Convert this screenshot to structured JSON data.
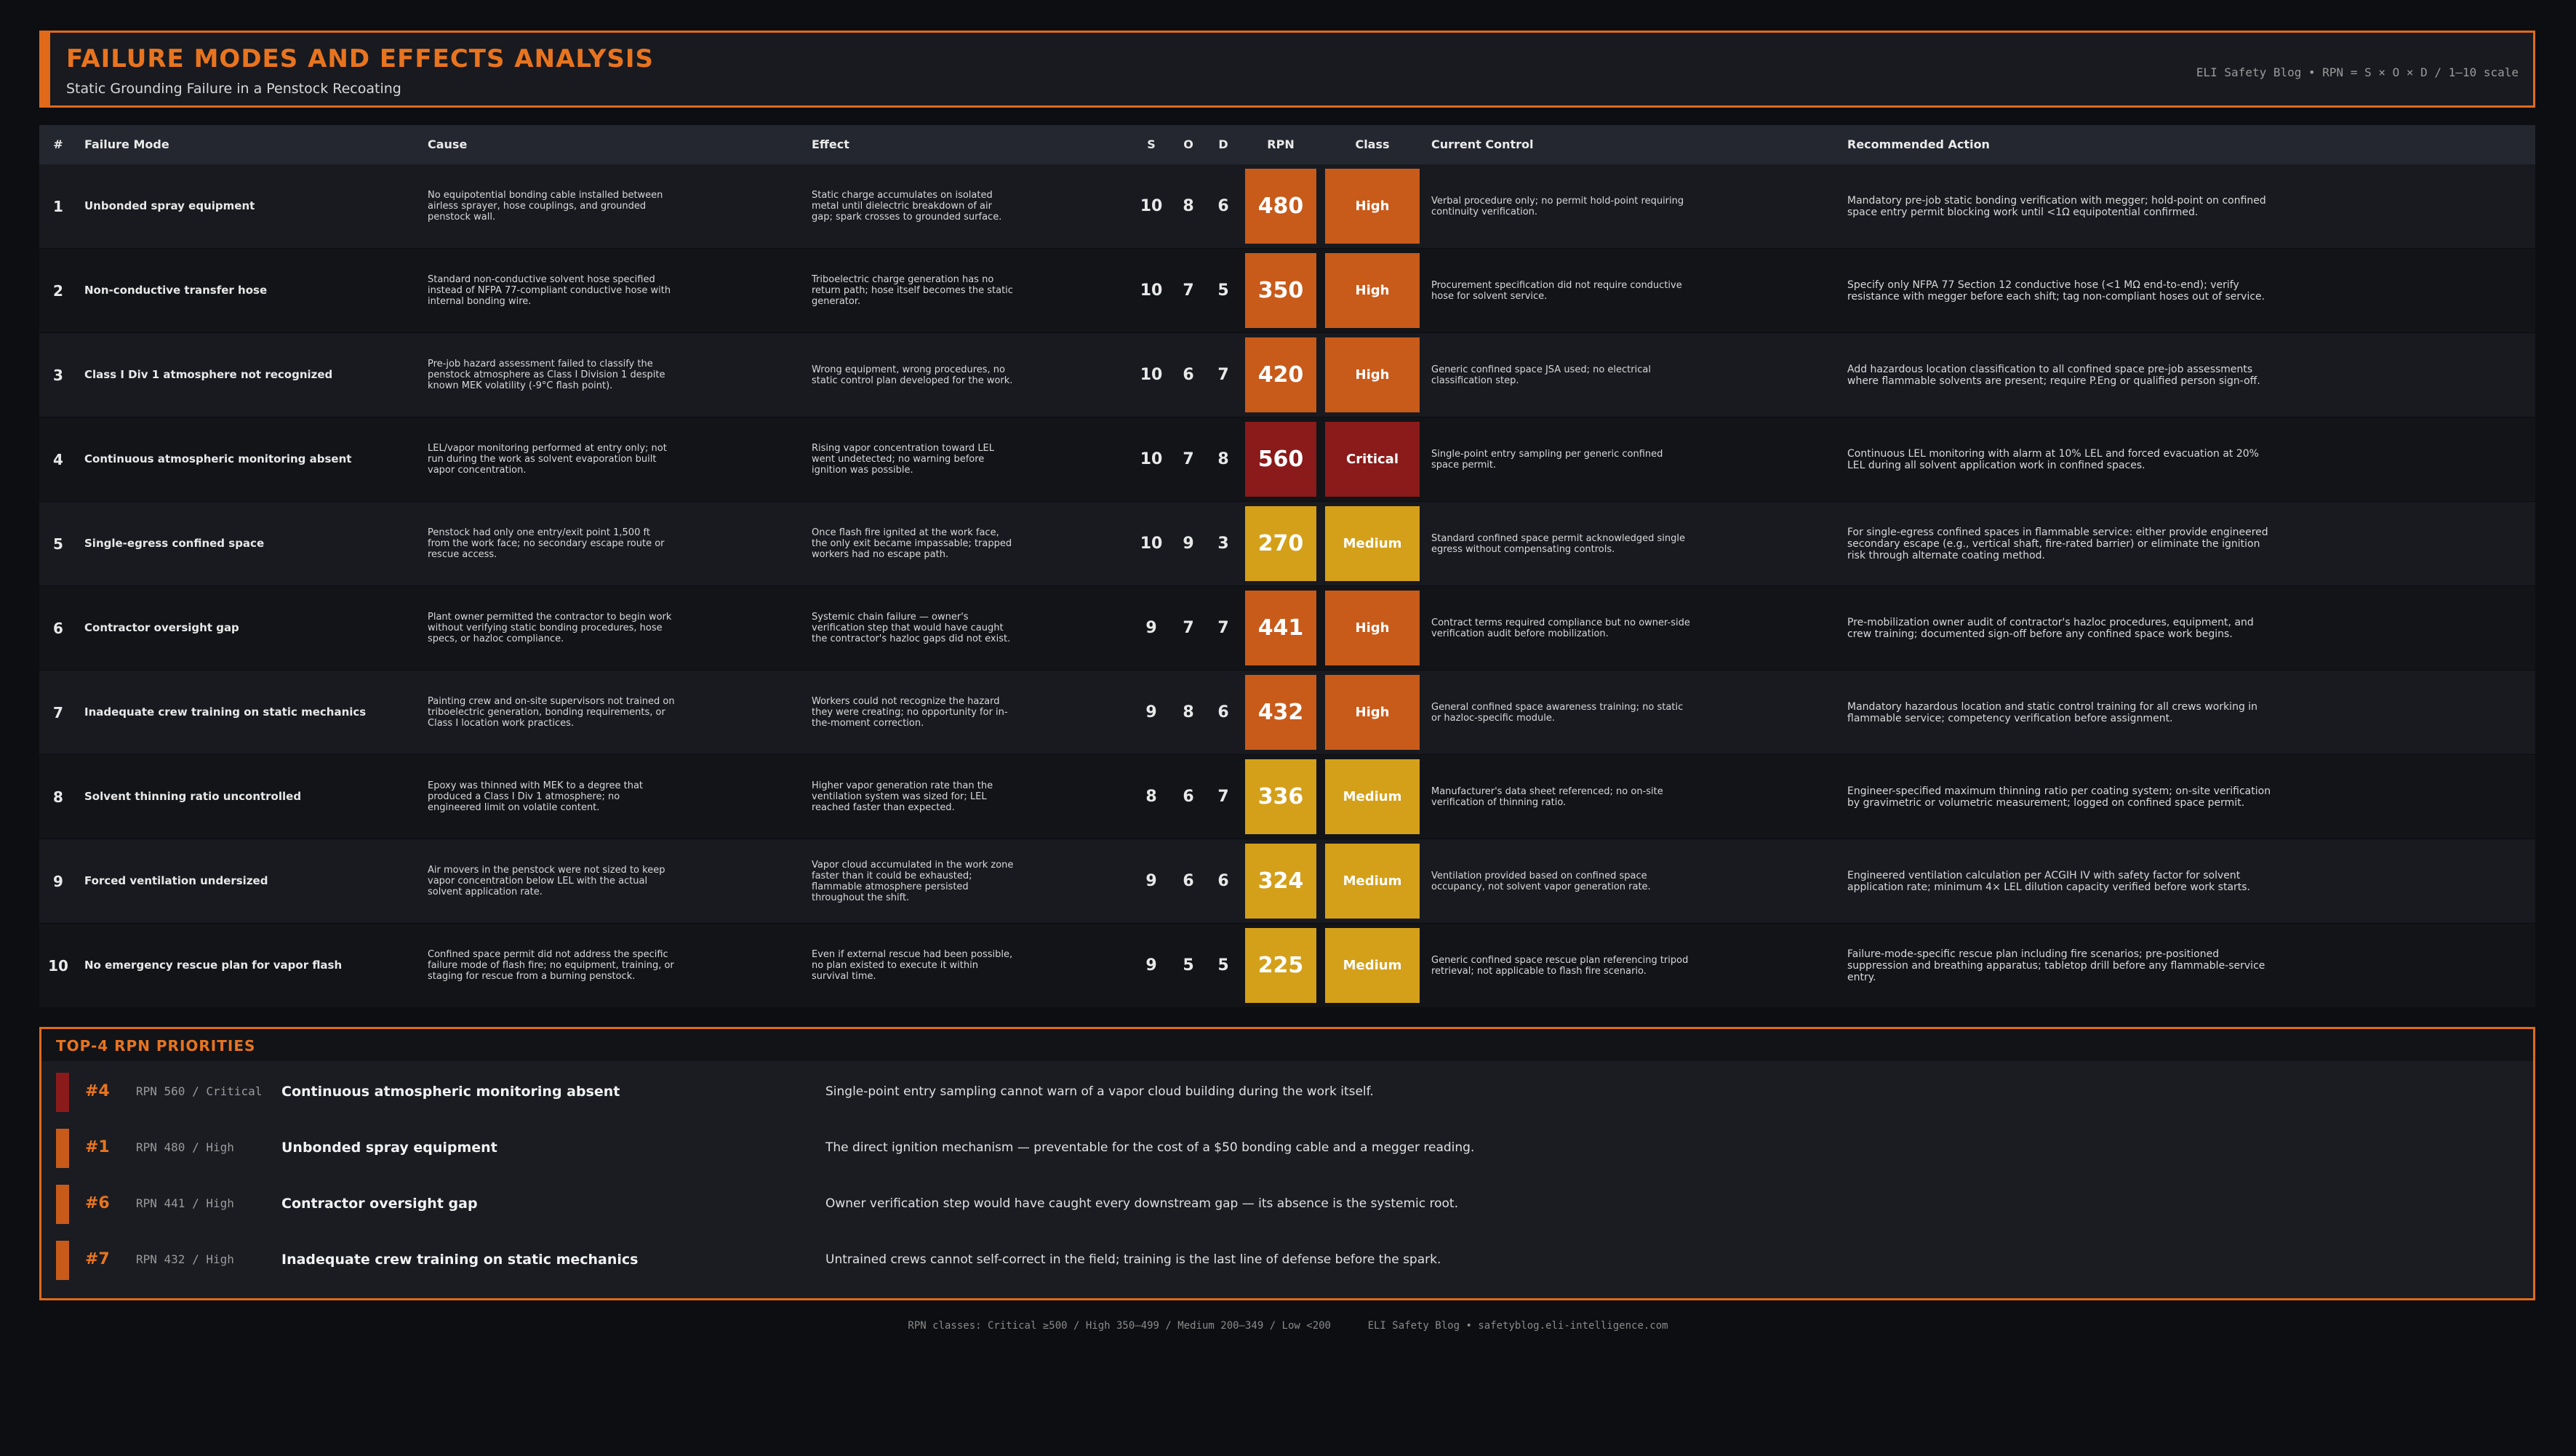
{
  "header": {
    "title": "FAILURE MODES AND EFFECTS ANALYSIS",
    "subtitle": "Static Grounding Failure in a Penstock Recoating",
    "meta": "ELI Safety Blog  •  RPN = S × O × D  /  1–10 scale"
  },
  "colors": {
    "accent": "#e06a1a",
    "critical": "#8b1a1a",
    "high": "#c85a1a",
    "medium": "#d4a01a"
  },
  "table": {
    "headers": {
      "num": "#",
      "mode": "Failure Mode",
      "cause": "Cause",
      "effect": "Effect",
      "s": "S",
      "o": "O",
      "d": "D",
      "rpn": "RPN",
      "class": "Class",
      "control": "Current Control",
      "action": "Recommended Action"
    },
    "rows": [
      {
        "num": "1",
        "mode": "Unbonded spray equipment",
        "cause": "No equipotential bonding cable installed between airless sprayer, hose couplings, and grounded penstock wall.",
        "effect": "Static charge accumulates on isolated metal until dielectric breakdown of air gap; spark crosses to grounded surface.",
        "s": "10",
        "o": "8",
        "d": "6",
        "rpn": "480",
        "class": "High",
        "control": "Verbal procedure only; no permit hold-point requiring continuity verification.",
        "action": "Mandatory pre-job static bonding verification with megger; hold-point on confined space entry permit blocking work until <1Ω equipotential confirmed."
      },
      {
        "num": "2",
        "mode": "Non-conductive transfer hose",
        "cause": "Standard non-conductive solvent hose specified instead of NFPA 77-compliant conductive hose with internal bonding wire.",
        "effect": "Triboelectric charge generation has no return path; hose itself becomes the static generator.",
        "s": "10",
        "o": "7",
        "d": "5",
        "rpn": "350",
        "class": "High",
        "control": "Procurement specification did not require conductive hose for solvent service.",
        "action": "Specify only NFPA 77 Section 12 conductive hose (<1 MΩ end-to-end); verify resistance with megger before each shift; tag non-compliant hoses out of service."
      },
      {
        "num": "3",
        "mode": "Class I Div 1 atmosphere not recognized",
        "cause": "Pre-job hazard assessment failed to classify the penstock atmosphere as Class I Division 1 despite known MEK volatility (-9°C flash point).",
        "effect": "Wrong equipment, wrong procedures, no static control plan developed for the work.",
        "s": "10",
        "o": "6",
        "d": "7",
        "rpn": "420",
        "class": "High",
        "control": "Generic confined space JSA used; no electrical classification step.",
        "action": "Add hazardous location classification to all confined space pre-job assessments where flammable solvents are present; require P.Eng or qualified person sign-off."
      },
      {
        "num": "4",
        "mode": "Continuous atmospheric monitoring absent",
        "cause": "LEL/vapor monitoring performed at entry only; not run during the work as solvent evaporation built vapor concentration.",
        "effect": "Rising vapor concentration toward LEL went undetected; no warning before ignition was possible.",
        "s": "10",
        "o": "7",
        "d": "8",
        "rpn": "560",
        "class": "Critical",
        "control": "Single-point entry sampling per generic confined space permit.",
        "action": "Continuous LEL monitoring with alarm at 10% LEL and forced evacuation at 20% LEL during all solvent application work in confined spaces."
      },
      {
        "num": "5",
        "mode": "Single-egress confined space",
        "cause": "Penstock had only one entry/exit point 1,500 ft from the work face; no secondary escape route or rescue access.",
        "effect": "Once flash fire ignited at the work face, the only exit became impassable; trapped workers had no escape path.",
        "s": "10",
        "o": "9",
        "d": "3",
        "rpn": "270",
        "class": "Medium",
        "control": "Standard confined space permit acknowledged single egress without compensating controls.",
        "action": "For single-egress confined spaces in flammable service: either provide engineered secondary escape (e.g., vertical shaft, fire-rated barrier) or eliminate the ignition risk through alternate coating method."
      },
      {
        "num": "6",
        "mode": "Contractor oversight gap",
        "cause": "Plant owner permitted the contractor to begin work without verifying static bonding procedures, hose specs, or hazloc compliance.",
        "effect": "Systemic chain failure — owner's verification step that would have caught the contractor's hazloc gaps did not exist.",
        "s": "9",
        "o": "7",
        "d": "7",
        "rpn": "441",
        "class": "High",
        "control": "Contract terms required compliance but no owner-side verification audit before mobilization.",
        "action": "Pre-mobilization owner audit of contractor's hazloc procedures, equipment, and crew training; documented sign-off before any confined space work begins."
      },
      {
        "num": "7",
        "mode": "Inadequate crew training on static mechanics",
        "cause": "Painting crew and on-site supervisors not trained on triboelectric generation, bonding requirements, or Class I location work practices.",
        "effect": "Workers could not recognize the hazard they were creating; no opportunity for in-the-moment correction.",
        "s": "9",
        "o": "8",
        "d": "6",
        "rpn": "432",
        "class": "High",
        "control": "General confined space awareness training; no static or hazloc-specific module.",
        "action": "Mandatory hazardous location and static control training for all crews working in flammable service; competency verification before assignment."
      },
      {
        "num": "8",
        "mode": "Solvent thinning ratio uncontrolled",
        "cause": "Epoxy was thinned with MEK to a degree that produced a Class I Div 1 atmosphere; no engineered limit on volatile content.",
        "effect": "Higher vapor generation rate than the ventilation system was sized for; LEL reached faster than expected.",
        "s": "8",
        "o": "6",
        "d": "7",
        "rpn": "336",
        "class": "Medium",
        "control": "Manufacturer's data sheet referenced; no on-site verification of thinning ratio.",
        "action": "Engineer-specified maximum thinning ratio per coating system; on-site verification by gravimetric or volumetric measurement; logged on confined space permit."
      },
      {
        "num": "9",
        "mode": "Forced ventilation undersized",
        "cause": "Air movers in the penstock were not sized to keep vapor concentration below LEL with the actual solvent application rate.",
        "effect": "Vapor cloud accumulated in the work zone faster than it could be exhausted; flammable atmosphere persisted throughout the shift.",
        "s": "9",
        "o": "6",
        "d": "6",
        "rpn": "324",
        "class": "Medium",
        "control": "Ventilation provided based on confined space occupancy, not solvent vapor generation rate.",
        "action": "Engineered ventilation calculation per ACGIH IV with safety factor for solvent application rate; minimum 4× LEL dilution capacity verified before work starts."
      },
      {
        "num": "10",
        "mode": "No emergency rescue plan for vapor flash",
        "cause": "Confined space permit did not address the specific failure mode of flash fire; no equipment, training, or staging for rescue from a burning penstock.",
        "effect": "Even if external rescue had been possible, no plan existed to execute it within survival time.",
        "s": "9",
        "o": "5",
        "d": "5",
        "rpn": "225",
        "class": "Medium",
        "control": "Generic confined space rescue plan referencing tripod retrieval; not applicable to flash fire scenario.",
        "action": "Failure-mode-specific rescue plan including fire scenarios; pre-positioned suppression and breathing apparatus; tabletop drill before any flammable-service entry."
      }
    ]
  },
  "priorities": {
    "title": "TOP-4 RPN PRIORITIES",
    "items": [
      {
        "rank": "#4",
        "meta": "RPN 560 / Critical",
        "mode": "Continuous atmospheric monitoring absent",
        "note": "Single-point entry sampling cannot warn of a vapor cloud building during the work itself.",
        "bar_color": "#8b1a1a"
      },
      {
        "rank": "#1",
        "meta": "RPN 480 / High",
        "mode": "Unbonded spray equipment",
        "note": "The direct ignition mechanism — preventable for the cost of a $50 bonding cable and a megger reading.",
        "bar_color": "#c85a1a"
      },
      {
        "rank": "#6",
        "meta": "RPN 441 / High",
        "mode": "Contractor oversight gap",
        "note": "Owner verification step would have caught every downstream gap — its absence is the systemic root.",
        "bar_color": "#c85a1a"
      },
      {
        "rank": "#7",
        "meta": "RPN 432 / High",
        "mode": "Inadequate crew training on static mechanics",
        "note": "Untrained crews cannot self-correct in the field; training is the last line of defense before the spark.",
        "bar_color": "#c85a1a"
      }
    ]
  },
  "footer": {
    "legend": "RPN classes: Critical ≥500 / High 350–499 / Medium 200–349 / Low <200",
    "source": "ELI Safety Blog • safetyblog.eli-intelligence.com"
  }
}
